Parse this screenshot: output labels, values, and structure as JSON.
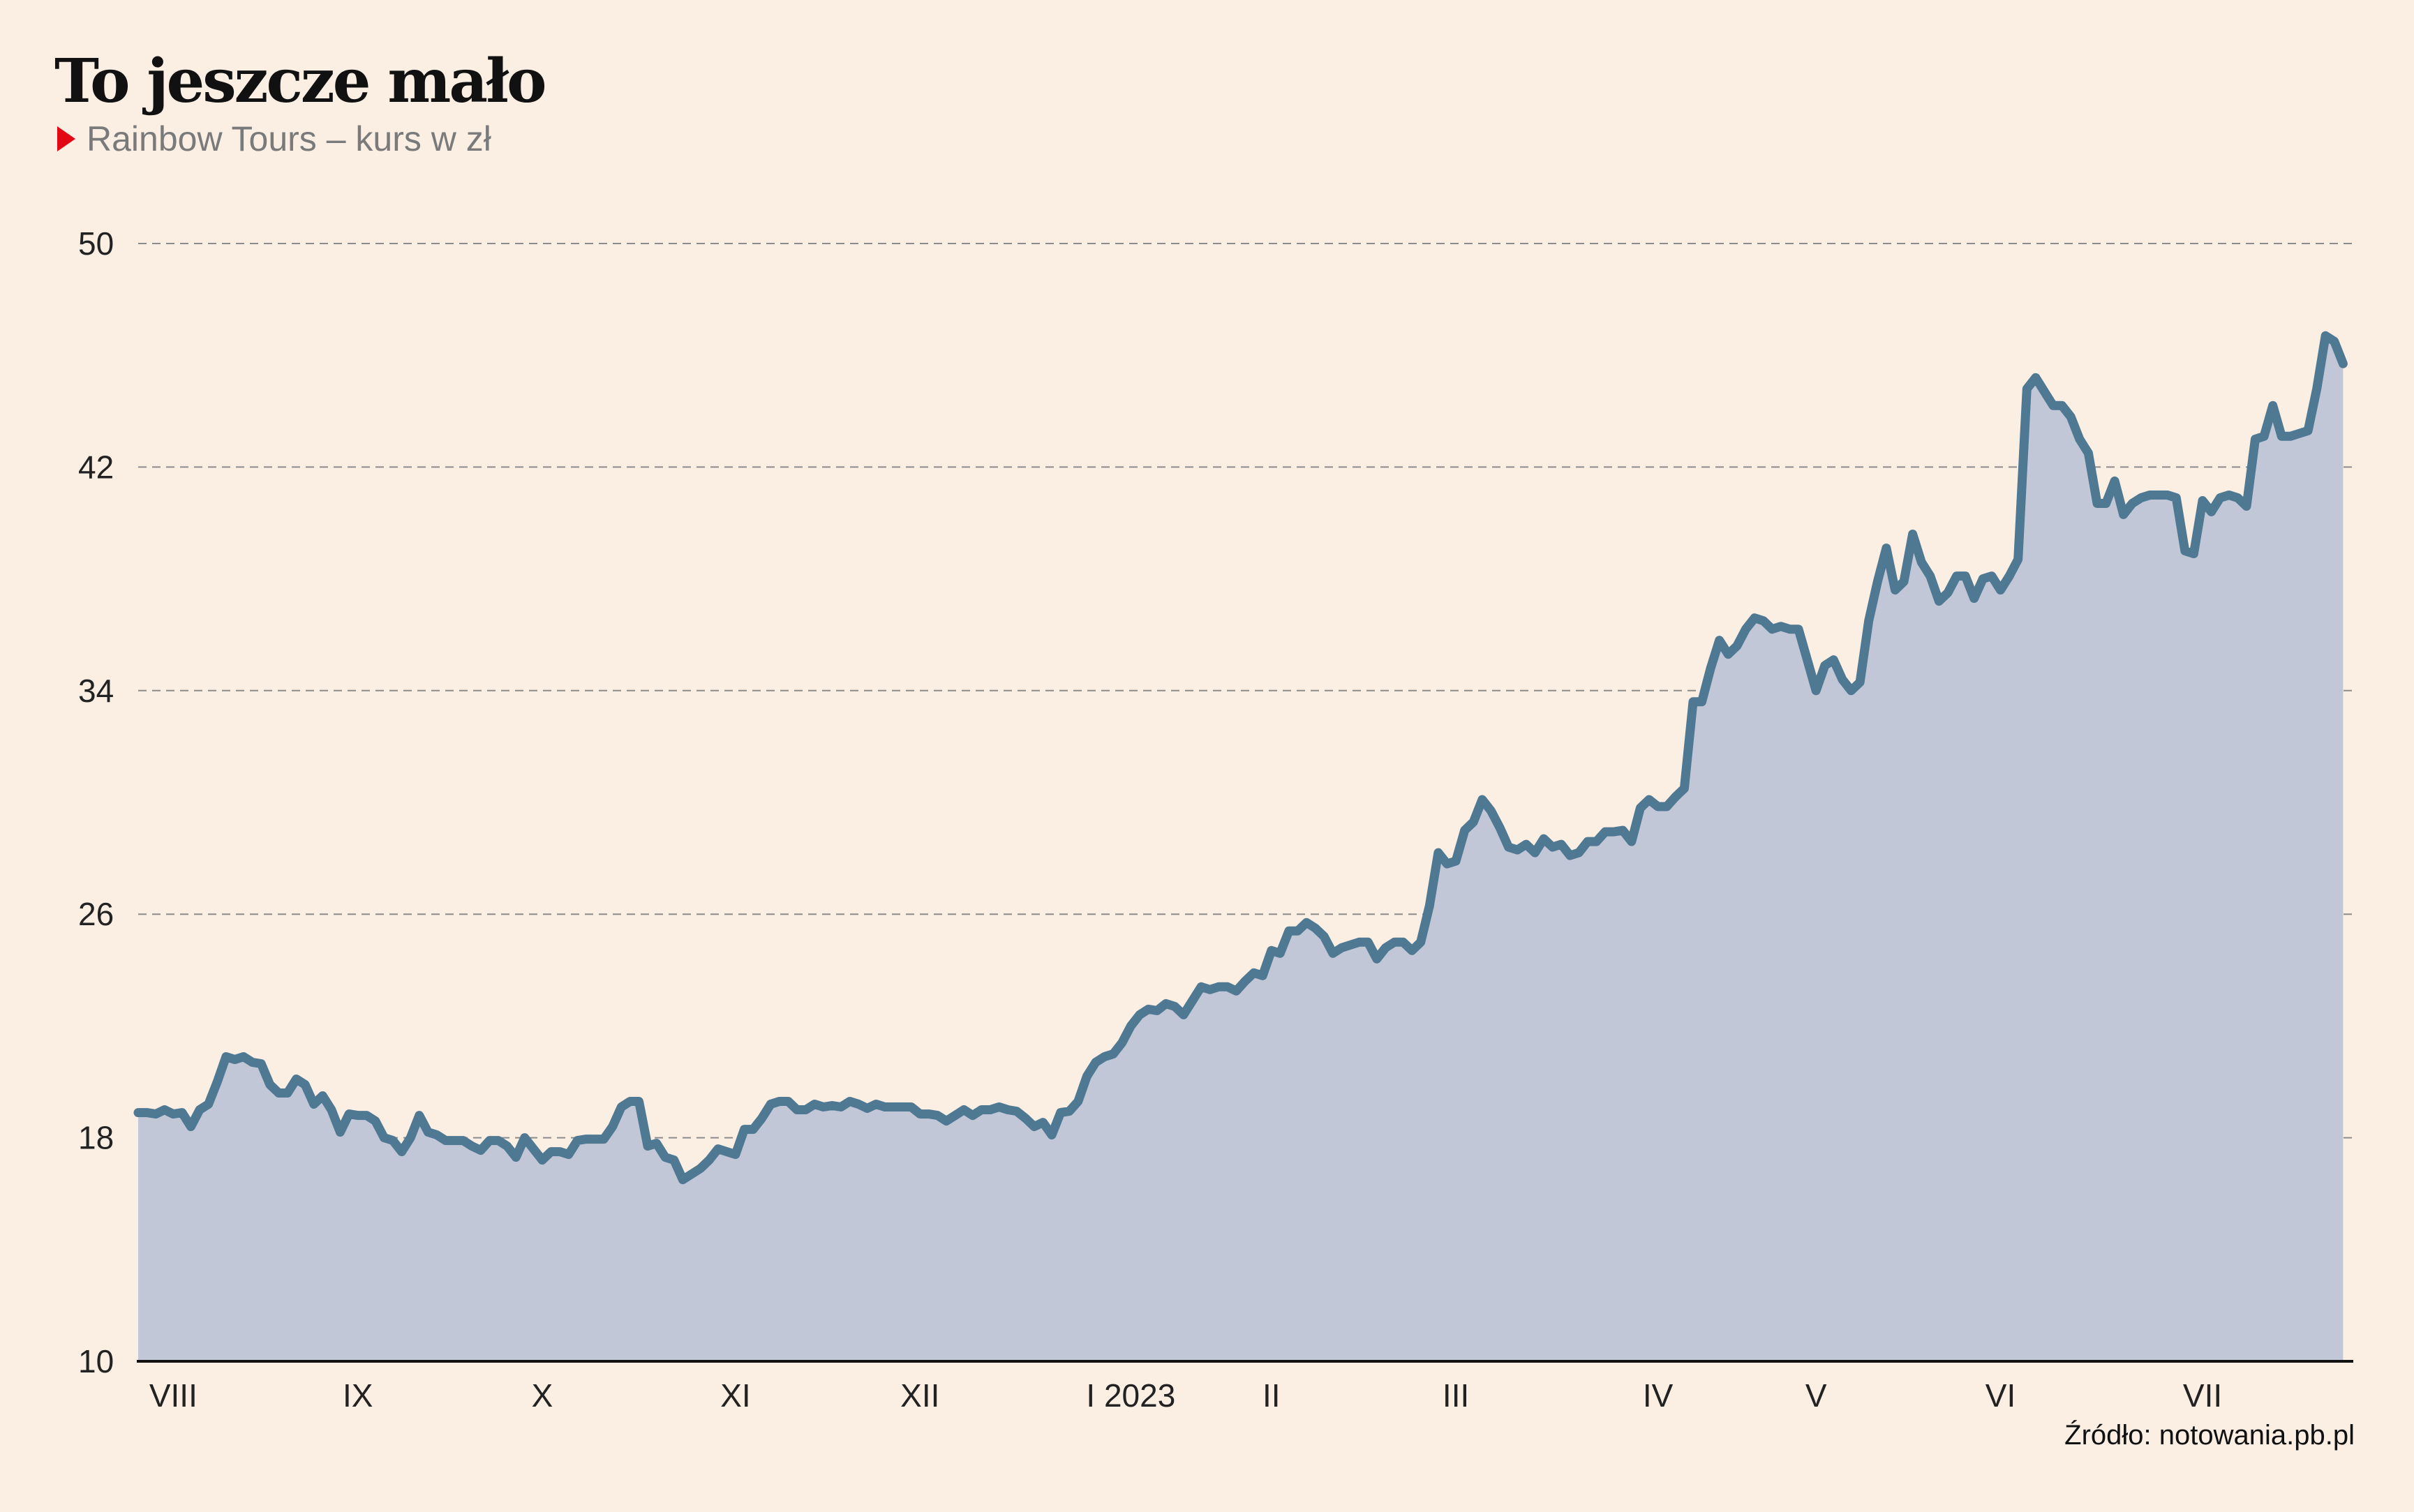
{
  "header": {
    "title": "To jeszcze mało",
    "subtitle": "Rainbow Tours – kurs w zł"
  },
  "footer": {
    "source": "Źródło: notowania.pb.pl"
  },
  "colors": {
    "background": "#fbeee2",
    "line": "#4f7893",
    "area": "#c1c7d7",
    "marker": "#e30613",
    "grid": "#8c8c8c"
  },
  "chart_data": {
    "type": "area",
    "title": "To jeszcze mało",
    "subtitle": "Rainbow Tours – kurs w zł",
    "xlabel": "",
    "ylabel": "",
    "ylim": [
      10,
      50
    ],
    "yticks": [
      10,
      18,
      26,
      34,
      42,
      50
    ],
    "xlim": [
      0,
      252
    ],
    "x_ticks": [
      {
        "label": "VIII",
        "x": 4
      },
      {
        "label": "IX",
        "x": 25
      },
      {
        "label": "X",
        "x": 46
      },
      {
        "label": "XI",
        "x": 68
      },
      {
        "label": "XII",
        "x": 89
      },
      {
        "label": "I 2023",
        "x": 113
      },
      {
        "label": "II",
        "x": 129
      },
      {
        "label": "III",
        "x": 150
      },
      {
        "label": "IV",
        "x": 173
      },
      {
        "label": "V",
        "x": 191
      },
      {
        "label": "VI",
        "x": 212
      },
      {
        "label": "VII",
        "x": 235
      }
    ],
    "grid": "horizontal dashed",
    "legend": "none",
    "series": [
      {
        "values": [
          18.9,
          18.9,
          18.85,
          19.0,
          18.85,
          18.9,
          18.4,
          19.0,
          19.2,
          20.0,
          20.9,
          20.8,
          20.9,
          20.7,
          20.65,
          19.9,
          19.6,
          19.6,
          20.1,
          19.9,
          19.2,
          19.5,
          19.0,
          18.2,
          18.85,
          18.8,
          18.8,
          18.6,
          18.0,
          17.9,
          17.5,
          18.0,
          18.8,
          18.2,
          18.1,
          17.9,
          17.9,
          17.9,
          17.7,
          17.55,
          17.9,
          17.9,
          17.7,
          17.3,
          18.0,
          17.6,
          17.2,
          17.5,
          17.5,
          17.4,
          17.9,
          17.95,
          17.95,
          17.95,
          18.4,
          19.1,
          19.3,
          19.3,
          17.7,
          17.8,
          17.3,
          17.2,
          16.5,
          16.7,
          16.9,
          17.2,
          17.6,
          17.5,
          17.4,
          18.3,
          18.3,
          18.7,
          19.2,
          19.3,
          19.3,
          19.0,
          19.0,
          19.2,
          19.1,
          19.15,
          19.1,
          19.3,
          19.2,
          19.05,
          19.2,
          19.1,
          19.1,
          19.1,
          19.1,
          18.85,
          18.85,
          18.8,
          18.6,
          18.8,
          19.0,
          18.8,
          19.0,
          19.0,
          19.1,
          19.0,
          18.95,
          18.7,
          18.4,
          18.55,
          18.1,
          18.9,
          18.95,
          19.3,
          20.2,
          20.7,
          20.9,
          21.0,
          21.4,
          22.0,
          22.4,
          22.6,
          22.55,
          22.8,
          22.7,
          22.4,
          22.9,
          23.4,
          23.3,
          23.4,
          23.4,
          23.25,
          23.6,
          23.9,
          23.8,
          24.7,
          24.6,
          25.4,
          25.4,
          25.7,
          25.5,
          25.2,
          24.6,
          24.8,
          24.9,
          25.0,
          25.0,
          24.4,
          24.8,
          25.0,
          25.0,
          24.7,
          25.0,
          26.3,
          28.2,
          27.8,
          27.9,
          29.0,
          29.3,
          30.1,
          29.7,
          29.1,
          28.4,
          28.3,
          28.5,
          28.2,
          28.7,
          28.4,
          28.5,
          28.1,
          28.2,
          28.6,
          28.6,
          28.95,
          28.95,
          29.0,
          28.6,
          29.8,
          30.1,
          29.85,
          29.85,
          30.2,
          30.5,
          33.6,
          33.6,
          34.8,
          35.8,
          35.3,
          35.6,
          36.2,
          36.6,
          36.5,
          36.2,
          36.3,
          36.2,
          36.2,
          35.1,
          34.0,
          34.9,
          35.1,
          34.4,
          34.0,
          34.3,
          36.5,
          37.9,
          39.1,
          37.6,
          37.9,
          39.6,
          38.6,
          38.1,
          37.2,
          37.5,
          38.1,
          38.1,
          37.3,
          38.0,
          38.1,
          37.6,
          38.1,
          38.7,
          44.8,
          45.2,
          44.7,
          44.2,
          44.2,
          43.8,
          43.0,
          42.5,
          40.7,
          40.7,
          41.5,
          40.3,
          40.7,
          40.9,
          41.0,
          41.0,
          41.0,
          40.9,
          39.0,
          38.9,
          40.8,
          40.4,
          40.9,
          41.0,
          40.9,
          40.6,
          43.0,
          43.1,
          44.2,
          43.1,
          43.1,
          43.2,
          43.3,
          44.8,
          46.7,
          46.5,
          45.7
        ]
      }
    ]
  }
}
